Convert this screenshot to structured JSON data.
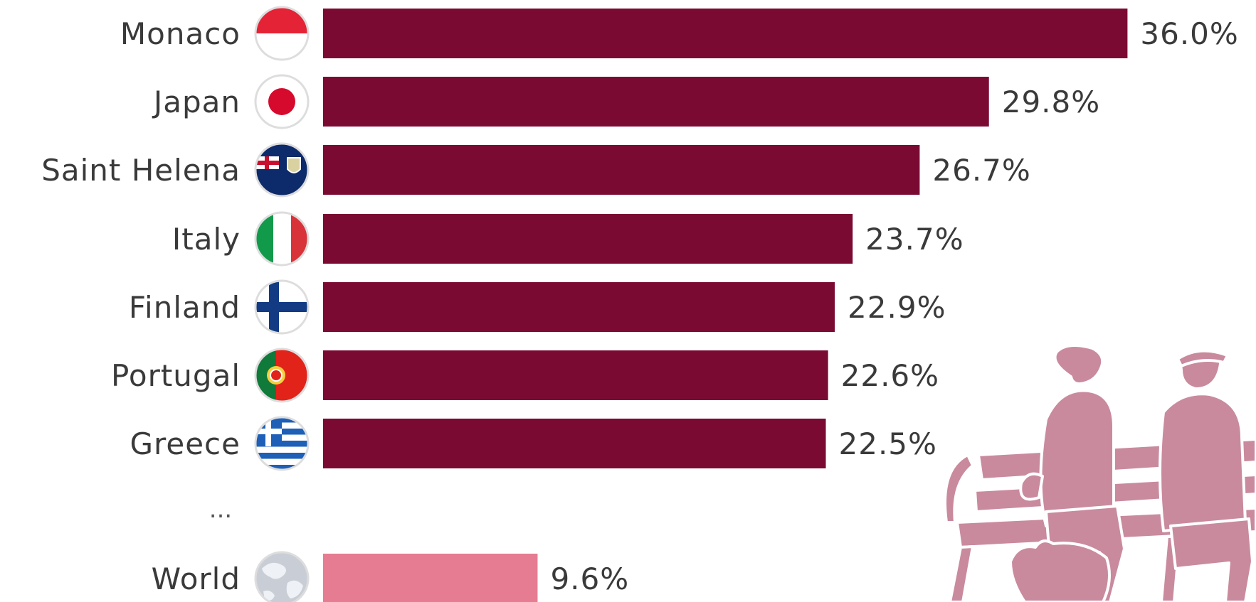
{
  "chart_data": {
    "type": "bar",
    "orientation": "horizontal",
    "categories": [
      "Monaco",
      "Japan",
      "Saint Helena",
      "Italy",
      "Finland",
      "Portugal",
      "Greece",
      "World"
    ],
    "values": [
      36.0,
      29.8,
      26.7,
      23.7,
      22.9,
      22.6,
      22.5,
      9.6
    ],
    "value_labels": [
      "36.0%",
      "29.8%",
      "26.7%",
      "23.7%",
      "22.9%",
      "22.6%",
      "22.5%",
      "9.6%"
    ],
    "ellipsis_label": "...",
    "icons": [
      "flag-monaco-icon",
      "flag-japan-icon",
      "flag-saint-helena-icon",
      "flag-italy-icon",
      "flag-finland-icon",
      "flag-portugal-icon",
      "flag-greece-icon",
      "globe-icon"
    ],
    "colors": {
      "bar": "#7b0a33",
      "highlight_bar": "#e57c91",
      "illustration": "#c98a9e"
    },
    "highlight_category": "World",
    "title": "",
    "xlabel": "",
    "ylabel": ""
  }
}
